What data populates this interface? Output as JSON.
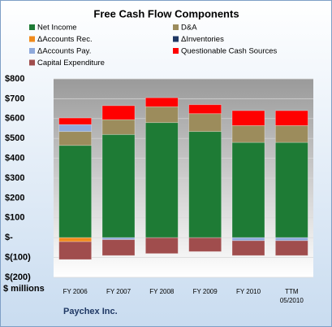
{
  "chart_data": {
    "type": "stacked-bar",
    "title": "Free Cash Flow Components",
    "y_axis_label": "$ millions",
    "x_axis_label": "Paychex Inc.",
    "categories": [
      "FY 2006",
      "FY 2007",
      "FY 2008",
      "FY 2009",
      "FY 2010",
      "TTM 05/2010"
    ],
    "series": [
      {
        "name": "Net Income",
        "color": "#1e7b35",
        "values": [
          465,
          520,
          580,
          535,
          480,
          480
        ]
      },
      {
        "name": "D&A",
        "color": "#9c8c5c",
        "values": [
          70,
          75,
          80,
          90,
          85,
          85
        ]
      },
      {
        "name": "ΔAccounts Rec.",
        "color": "#f08a1c",
        "values": [
          -20,
          null,
          null,
          null,
          null,
          null
        ]
      },
      {
        "name": "ΔInventories",
        "color": "#1f3864",
        "values": [
          null,
          null,
          null,
          null,
          null,
          null
        ]
      },
      {
        "name": "ΔAccounts Pay.",
        "color": "#8ea9db",
        "values": [
          35,
          -10,
          null,
          null,
          -15,
          -15
        ]
      },
      {
        "name": "Questionable Cash Sources",
        "color": "#ff0000",
        "values": [
          33,
          70,
          45,
          45,
          75,
          75
        ]
      },
      {
        "name": "Capital Expenditure",
        "color": "#a04d4d",
        "values": [
          -90,
          -80,
          -80,
          -70,
          -75,
          -75
        ]
      }
    ],
    "ylim": [
      -200,
      800
    ],
    "yticks": [
      {
        "value": -200,
        "label": "$(200)"
      },
      {
        "value": -100,
        "label": "$(100)"
      },
      {
        "value": 0,
        "label": "$-"
      },
      {
        "value": 100,
        "label": "$100"
      },
      {
        "value": 200,
        "label": "$200"
      },
      {
        "value": 300,
        "label": "$300"
      },
      {
        "value": 400,
        "label": "$400"
      },
      {
        "value": 500,
        "label": "$500"
      },
      {
        "value": 600,
        "label": "$600"
      },
      {
        "value": 700,
        "label": "$700"
      },
      {
        "value": 800,
        "label": "$800"
      }
    ],
    "grid": true
  }
}
